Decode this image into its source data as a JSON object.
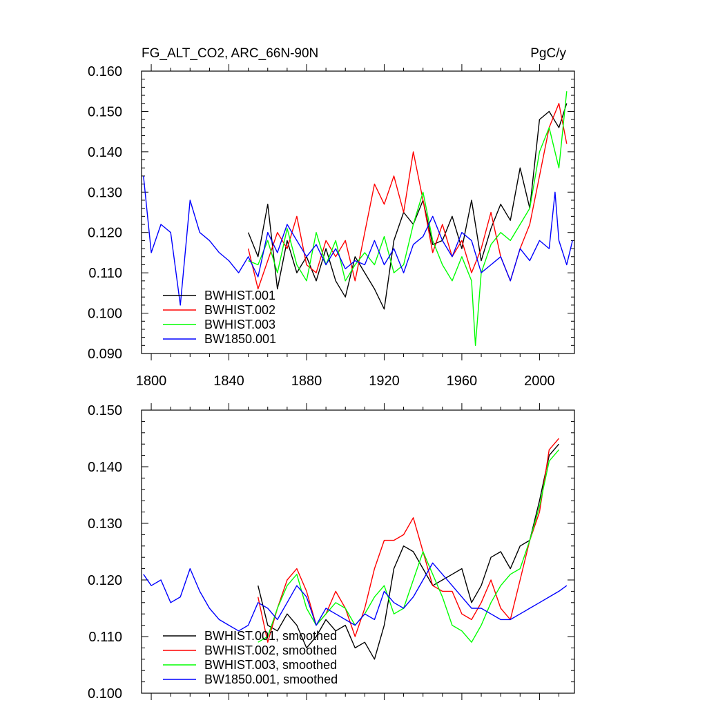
{
  "chart_data": [
    {
      "type": "line",
      "title": "FG_ALT_CO2, ARC_66N-90N",
      "units": "PgC/y",
      "xlabel": "",
      "ylabel": "",
      "xlim": [
        1795,
        2018
      ],
      "ylim": [
        0.09,
        0.16
      ],
      "xticks": [
        1800,
        1840,
        1880,
        1920,
        1960,
        2000
      ],
      "xtick_labels": [
        "1800",
        "1840",
        "1880",
        "1920",
        "1960",
        "2000"
      ],
      "yticks": [
        0.09,
        0.1,
        0.11,
        0.12,
        0.13,
        0.14,
        0.15,
        0.16
      ],
      "ytick_labels": [
        "0.090",
        "0.100",
        "0.110",
        "0.120",
        "0.130",
        "0.140",
        "0.150",
        "0.160"
      ],
      "legend_position": "bottom-left",
      "series": [
        {
          "name": "BWHIST.001",
          "color": "#000000",
          "x": [
            1850,
            1855,
            1860,
            1865,
            1870,
            1875,
            1880,
            1885,
            1890,
            1895,
            1900,
            1905,
            1910,
            1915,
            1920,
            1925,
            1930,
            1935,
            1940,
            1945,
            1950,
            1955,
            1960,
            1965,
            1970,
            1975,
            1980,
            1985,
            1990,
            1995,
            2000,
            2005,
            2010,
            2014
          ],
          "y": [
            0.12,
            0.114,
            0.127,
            0.106,
            0.118,
            0.11,
            0.114,
            0.108,
            0.116,
            0.108,
            0.104,
            0.114,
            0.11,
            0.106,
            0.101,
            0.118,
            0.125,
            0.122,
            0.128,
            0.117,
            0.118,
            0.124,
            0.116,
            0.128,
            0.113,
            0.121,
            0.127,
            0.123,
            0.136,
            0.126,
            0.148,
            0.15,
            0.146,
            0.152
          ]
        },
        {
          "name": "BWHIST.002",
          "color": "#ff0000",
          "x": [
            1850,
            1855,
            1860,
            1865,
            1870,
            1875,
            1880,
            1885,
            1890,
            1895,
            1900,
            1905,
            1910,
            1915,
            1920,
            1925,
            1930,
            1935,
            1940,
            1945,
            1950,
            1955,
            1960,
            1965,
            1970,
            1975,
            1980,
            1985,
            1990,
            1995,
            2000,
            2005,
            2010,
            2014
          ],
          "y": [
            0.116,
            0.106,
            0.113,
            0.12,
            0.116,
            0.124,
            0.112,
            0.11,
            0.118,
            0.114,
            0.118,
            0.108,
            0.12,
            0.132,
            0.127,
            0.134,
            0.125,
            0.14,
            0.128,
            0.115,
            0.122,
            0.114,
            0.118,
            0.11,
            0.116,
            0.125,
            0.114,
            0.108,
            0.116,
            0.122,
            0.134,
            0.146,
            0.152,
            0.142
          ]
        },
        {
          "name": "BWHIST.003",
          "color": "#00ff00",
          "x": [
            1850,
            1855,
            1860,
            1865,
            1870,
            1875,
            1880,
            1885,
            1890,
            1895,
            1900,
            1905,
            1910,
            1915,
            1920,
            1925,
            1930,
            1935,
            1940,
            1945,
            1950,
            1955,
            1960,
            1965,
            1967,
            1970,
            1975,
            1980,
            1985,
            1990,
            1995,
            2000,
            2005,
            2010,
            2014
          ],
          "y": [
            0.113,
            0.112,
            0.118,
            0.11,
            0.121,
            0.112,
            0.108,
            0.12,
            0.112,
            0.118,
            0.108,
            0.112,
            0.115,
            0.112,
            0.119,
            0.11,
            0.112,
            0.122,
            0.13,
            0.118,
            0.112,
            0.108,
            0.114,
            0.108,
            0.092,
            0.11,
            0.117,
            0.12,
            0.118,
            0.122,
            0.126,
            0.14,
            0.146,
            0.136,
            0.155
          ]
        },
        {
          "name": "BW1850.001",
          "color": "#0000ff",
          "x": [
            1796,
            1800,
            1805,
            1810,
            1815,
            1820,
            1825,
            1830,
            1835,
            1840,
            1845,
            1850,
            1855,
            1860,
            1865,
            1870,
            1875,
            1880,
            1885,
            1890,
            1895,
            1900,
            1905,
            1910,
            1915,
            1920,
            1925,
            1930,
            1935,
            1940,
            1945,
            1950,
            1955,
            1960,
            1965,
            1970,
            1975,
            1980,
            1985,
            1990,
            1995,
            2000,
            2005,
            2008,
            2010,
            2014,
            2017
          ],
          "y": [
            0.134,
            0.115,
            0.122,
            0.12,
            0.102,
            0.128,
            0.12,
            0.118,
            0.115,
            0.113,
            0.11,
            0.114,
            0.109,
            0.12,
            0.115,
            0.122,
            0.118,
            0.114,
            0.117,
            0.112,
            0.116,
            0.111,
            0.113,
            0.112,
            0.118,
            0.112,
            0.116,
            0.11,
            0.117,
            0.119,
            0.124,
            0.118,
            0.114,
            0.12,
            0.118,
            0.11,
            0.112,
            0.114,
            0.108,
            0.116,
            0.113,
            0.118,
            0.116,
            0.13,
            0.118,
            0.112,
            0.118
          ]
        }
      ]
    },
    {
      "type": "line",
      "title": "",
      "xlabel": "",
      "ylabel": "",
      "xlim": [
        1795,
        2018
      ],
      "ylim": [
        0.1,
        0.15
      ],
      "xticks": [
        1800,
        1840,
        1880,
        1920,
        1960,
        2000
      ],
      "yticks": [
        0.1,
        0.11,
        0.12,
        0.13,
        0.14,
        0.15
      ],
      "ytick_labels": [
        "0.100",
        "0.110",
        "0.120",
        "0.130",
        "0.140",
        "0.150"
      ],
      "legend_position": "bottom-left",
      "series": [
        {
          "name": "BWHIST.001, smoothed",
          "color": "#000000",
          "x": [
            1855,
            1860,
            1865,
            1870,
            1875,
            1880,
            1885,
            1890,
            1895,
            1900,
            1905,
            1910,
            1915,
            1920,
            1925,
            1930,
            1935,
            1940,
            1945,
            1950,
            1955,
            1960,
            1965,
            1970,
            1975,
            1980,
            1985,
            1990,
            1995,
            2000,
            2005,
            2010
          ],
          "y": [
            0.119,
            0.112,
            0.111,
            0.114,
            0.112,
            0.108,
            0.11,
            0.113,
            0.111,
            0.112,
            0.108,
            0.109,
            0.106,
            0.112,
            0.122,
            0.126,
            0.125,
            0.122,
            0.119,
            0.12,
            0.121,
            0.122,
            0.116,
            0.119,
            0.124,
            0.125,
            0.122,
            0.126,
            0.127,
            0.134,
            0.142,
            0.144
          ]
        },
        {
          "name": "BWHIST.002, smoothed",
          "color": "#ff0000",
          "x": [
            1855,
            1860,
            1865,
            1870,
            1875,
            1880,
            1885,
            1890,
            1895,
            1900,
            1905,
            1910,
            1915,
            1920,
            1925,
            1930,
            1935,
            1940,
            1945,
            1950,
            1955,
            1960,
            1965,
            1970,
            1975,
            1980,
            1985,
            1990,
            1995,
            2000,
            2005,
            2010
          ],
          "y": [
            0.117,
            0.109,
            0.115,
            0.12,
            0.122,
            0.118,
            0.112,
            0.114,
            0.118,
            0.115,
            0.11,
            0.115,
            0.122,
            0.127,
            0.127,
            0.128,
            0.131,
            0.125,
            0.119,
            0.118,
            0.118,
            0.114,
            0.113,
            0.116,
            0.12,
            0.115,
            0.113,
            0.12,
            0.127,
            0.132,
            0.143,
            0.145
          ]
        },
        {
          "name": "BWHIST.003, smoothed",
          "color": "#00ff00",
          "x": [
            1855,
            1860,
            1865,
            1870,
            1875,
            1880,
            1885,
            1890,
            1895,
            1900,
            1905,
            1910,
            1915,
            1920,
            1925,
            1930,
            1935,
            1940,
            1945,
            1950,
            1955,
            1960,
            1965,
            1970,
            1975,
            1980,
            1985,
            1990,
            1995,
            2000,
            2005,
            2010
          ],
          "y": [
            0.109,
            0.11,
            0.115,
            0.119,
            0.121,
            0.115,
            0.112,
            0.114,
            0.116,
            0.115,
            0.112,
            0.114,
            0.117,
            0.119,
            0.114,
            0.115,
            0.12,
            0.125,
            0.121,
            0.117,
            0.112,
            0.111,
            0.109,
            0.112,
            0.116,
            0.119,
            0.121,
            0.122,
            0.127,
            0.133,
            0.141,
            0.143
          ]
        },
        {
          "name": "BW1850.001, smoothed",
          "color": "#0000ff",
          "x": [
            1796,
            1800,
            1805,
            1810,
            1815,
            1820,
            1825,
            1830,
            1835,
            1840,
            1845,
            1850,
            1855,
            1860,
            1865,
            1870,
            1875,
            1880,
            1885,
            1890,
            1895,
            1900,
            1905,
            1910,
            1915,
            1920,
            1925,
            1930,
            1935,
            1940,
            1945,
            1950,
            1955,
            1960,
            1965,
            1970,
            1975,
            1980,
            1985,
            1990,
            1995,
            2000,
            2005,
            2010,
            2014
          ],
          "y": [
            0.121,
            0.119,
            0.12,
            0.116,
            0.117,
            0.122,
            0.118,
            0.115,
            0.113,
            0.112,
            0.111,
            0.112,
            0.116,
            0.115,
            0.113,
            0.116,
            0.119,
            0.117,
            0.112,
            0.115,
            0.114,
            0.113,
            0.112,
            0.114,
            0.113,
            0.118,
            0.116,
            0.115,
            0.117,
            0.12,
            0.123,
            0.121,
            0.119,
            0.117,
            0.115,
            0.115,
            0.114,
            0.113,
            0.113,
            0.114,
            0.115,
            0.116,
            0.117,
            0.118,
            0.119
          ]
        }
      ]
    }
  ]
}
